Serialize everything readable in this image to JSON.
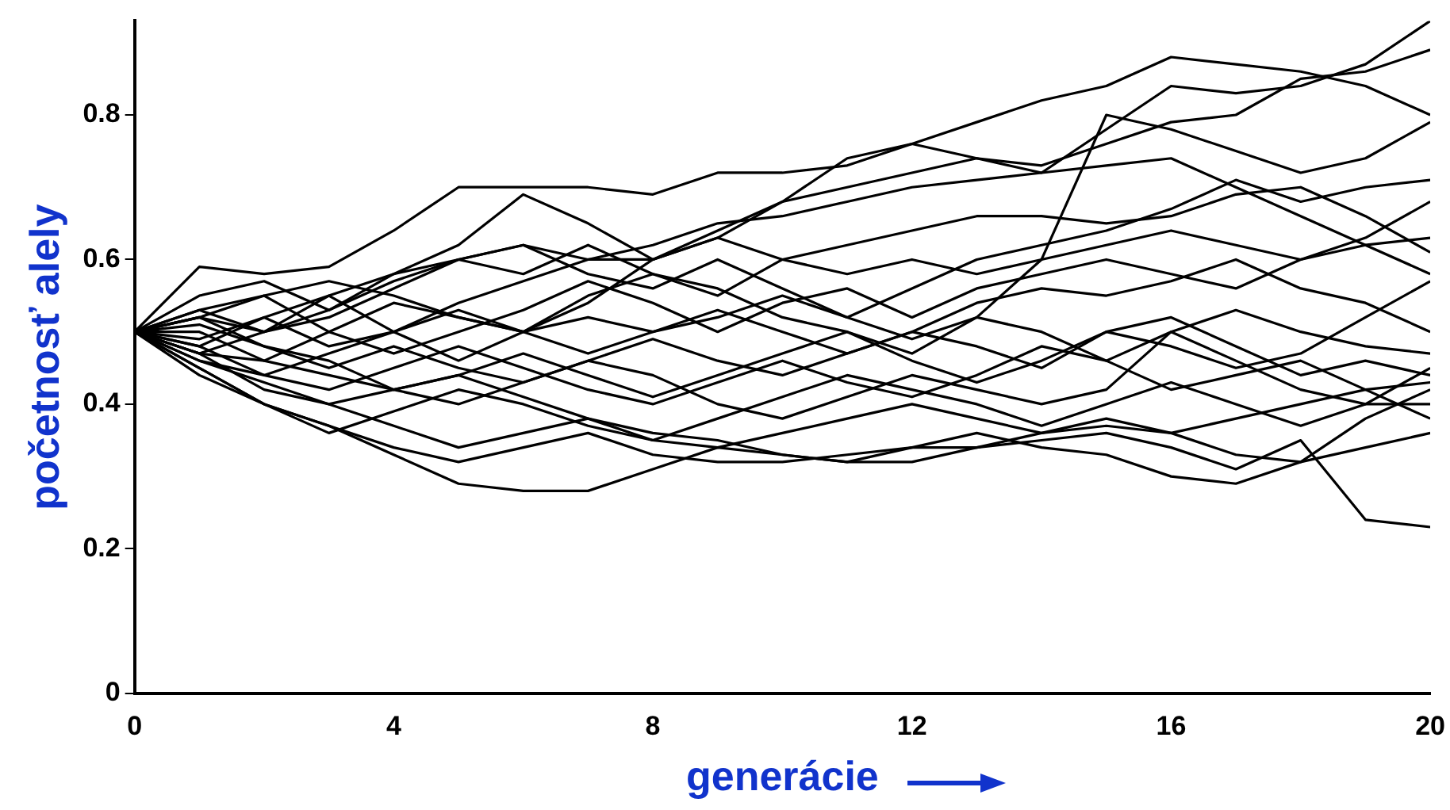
{
  "chart_data": {
    "type": "line",
    "xlabel": "generácie",
    "ylabel": "početnosť alely",
    "x": [
      0,
      1,
      2,
      3,
      4,
      5,
      6,
      7,
      8,
      9,
      10,
      11,
      12,
      13,
      14,
      15,
      16,
      17,
      18,
      19,
      20
    ],
    "xlim": [
      0,
      20
    ],
    "xticks": [
      0,
      4,
      8,
      12,
      16,
      20
    ],
    "ylim": [
      0,
      0.93
    ],
    "yticks": [
      0,
      0.2,
      0.4,
      0.6,
      0.8
    ],
    "grid": false,
    "legend": false,
    "marker": "none",
    "line_style": "solid",
    "series": [
      {
        "color": "#000000",
        "values": [
          0.5,
          0.59,
          0.58,
          0.59,
          0.64,
          0.7,
          0.7,
          0.7,
          0.69,
          0.72,
          0.72,
          0.73,
          0.76,
          0.79,
          0.82,
          0.84,
          0.88,
          0.87,
          0.86,
          0.84,
          0.8
        ]
      },
      {
        "color": "#000000",
        "values": [
          0.5,
          0.52,
          0.5,
          0.55,
          0.58,
          0.6,
          0.62,
          0.6,
          0.6,
          0.63,
          0.68,
          0.74,
          0.76,
          0.74,
          0.72,
          0.78,
          0.84,
          0.83,
          0.84,
          0.87,
          0.93
        ]
      },
      {
        "color": "#000000",
        "values": [
          0.5,
          0.55,
          0.57,
          0.53,
          0.58,
          0.62,
          0.69,
          0.65,
          0.6,
          0.64,
          0.68,
          0.7,
          0.72,
          0.74,
          0.73,
          0.76,
          0.79,
          0.8,
          0.85,
          0.86,
          0.89
        ]
      },
      {
        "color": "#000000",
        "values": [
          0.5,
          0.53,
          0.5,
          0.52,
          0.56,
          0.6,
          0.58,
          0.62,
          0.58,
          0.56,
          0.52,
          0.5,
          0.47,
          0.52,
          0.6,
          0.8,
          0.78,
          0.75,
          0.72,
          0.74,
          0.79
        ]
      },
      {
        "color": "#000000",
        "values": [
          0.5,
          0.48,
          0.52,
          0.55,
          0.5,
          0.54,
          0.57,
          0.6,
          0.62,
          0.65,
          0.66,
          0.68,
          0.7,
          0.71,
          0.72,
          0.73,
          0.74,
          0.7,
          0.66,
          0.62,
          0.58
        ]
      },
      {
        "color": "#000000",
        "values": [
          0.5,
          0.52,
          0.55,
          0.57,
          0.55,
          0.52,
          0.5,
          0.55,
          0.58,
          0.55,
          0.6,
          0.62,
          0.64,
          0.66,
          0.66,
          0.65,
          0.66,
          0.69,
          0.7,
          0.66,
          0.61
        ]
      },
      {
        "color": "#000000",
        "values": [
          0.5,
          0.47,
          0.5,
          0.53,
          0.57,
          0.6,
          0.62,
          0.58,
          0.56,
          0.6,
          0.56,
          0.52,
          0.56,
          0.6,
          0.62,
          0.64,
          0.67,
          0.71,
          0.68,
          0.7,
          0.71
        ]
      },
      {
        "color": "#000000",
        "values": [
          0.5,
          0.5,
          0.46,
          0.5,
          0.54,
          0.52,
          0.5,
          0.54,
          0.6,
          0.63,
          0.6,
          0.58,
          0.6,
          0.58,
          0.6,
          0.62,
          0.64,
          0.62,
          0.6,
          0.63,
          0.68
        ]
      },
      {
        "color": "#000000",
        "values": [
          0.5,
          0.53,
          0.55,
          0.5,
          0.47,
          0.5,
          0.53,
          0.57,
          0.54,
          0.5,
          0.54,
          0.56,
          0.52,
          0.56,
          0.58,
          0.6,
          0.58,
          0.56,
          0.6,
          0.62,
          0.63
        ]
      },
      {
        "color": "#000000",
        "values": [
          0.5,
          0.49,
          0.52,
          0.48,
          0.5,
          0.46,
          0.5,
          0.52,
          0.5,
          0.53,
          0.5,
          0.47,
          0.5,
          0.54,
          0.56,
          0.55,
          0.57,
          0.6,
          0.56,
          0.54,
          0.5
        ]
      },
      {
        "color": "#000000",
        "values": [
          0.5,
          0.46,
          0.44,
          0.47,
          0.5,
          0.53,
          0.5,
          0.47,
          0.5,
          0.52,
          0.55,
          0.52,
          0.49,
          0.52,
          0.5,
          0.46,
          0.5,
          0.53,
          0.5,
          0.48,
          0.47
        ]
      },
      {
        "color": "#000000",
        "values": [
          0.5,
          0.51,
          0.48,
          0.45,
          0.48,
          0.45,
          0.43,
          0.46,
          0.49,
          0.46,
          0.44,
          0.47,
          0.5,
          0.48,
          0.45,
          0.5,
          0.52,
          0.48,
          0.44,
          0.46,
          0.44
        ]
      },
      {
        "color": "#000000",
        "values": [
          0.5,
          0.47,
          0.46,
          0.44,
          0.42,
          0.44,
          0.47,
          0.44,
          0.41,
          0.44,
          0.47,
          0.5,
          0.46,
          0.43,
          0.46,
          0.5,
          0.48,
          0.45,
          0.47,
          0.52,
          0.57
        ]
      },
      {
        "color": "#000000",
        "values": [
          0.5,
          0.48,
          0.44,
          0.42,
          0.45,
          0.48,
          0.45,
          0.42,
          0.4,
          0.43,
          0.46,
          0.43,
          0.41,
          0.44,
          0.48,
          0.46,
          0.42,
          0.44,
          0.46,
          0.42,
          0.38
        ]
      },
      {
        "color": "#000000",
        "values": [
          0.5,
          0.47,
          0.42,
          0.4,
          0.42,
          0.4,
          0.43,
          0.46,
          0.44,
          0.4,
          0.38,
          0.41,
          0.44,
          0.42,
          0.4,
          0.42,
          0.5,
          0.46,
          0.42,
          0.4,
          0.4
        ]
      },
      {
        "color": "#000000",
        "values": [
          0.5,
          0.44,
          0.4,
          0.36,
          0.39,
          0.42,
          0.4,
          0.37,
          0.35,
          0.38,
          0.41,
          0.44,
          0.42,
          0.4,
          0.37,
          0.4,
          0.43,
          0.4,
          0.37,
          0.4,
          0.45
        ]
      },
      {
        "color": "#000000",
        "values": [
          0.5,
          0.46,
          0.43,
          0.4,
          0.37,
          0.34,
          0.36,
          0.38,
          0.35,
          0.34,
          0.36,
          0.38,
          0.4,
          0.38,
          0.36,
          0.38,
          0.36,
          0.38,
          0.4,
          0.42,
          0.43
        ]
      },
      {
        "color": "#000000",
        "values": [
          0.5,
          0.45,
          0.4,
          0.37,
          0.34,
          0.32,
          0.34,
          0.36,
          0.33,
          0.32,
          0.32,
          0.33,
          0.34,
          0.34,
          0.36,
          0.37,
          0.36,
          0.33,
          0.32,
          0.34,
          0.36
        ]
      },
      {
        "color": "#000000",
        "values": [
          0.5,
          0.45,
          0.4,
          0.37,
          0.33,
          0.29,
          0.28,
          0.28,
          0.31,
          0.34,
          0.33,
          0.32,
          0.32,
          0.34,
          0.35,
          0.36,
          0.34,
          0.31,
          0.35,
          0.24,
          0.23
        ]
      },
      {
        "color": "#000000",
        "values": [
          0.5,
          0.52,
          0.48,
          0.46,
          0.42,
          0.44,
          0.41,
          0.38,
          0.36,
          0.35,
          0.33,
          0.32,
          0.34,
          0.36,
          0.34,
          0.33,
          0.3,
          0.29,
          0.32,
          0.38,
          0.42
        ]
      }
    ]
  }
}
